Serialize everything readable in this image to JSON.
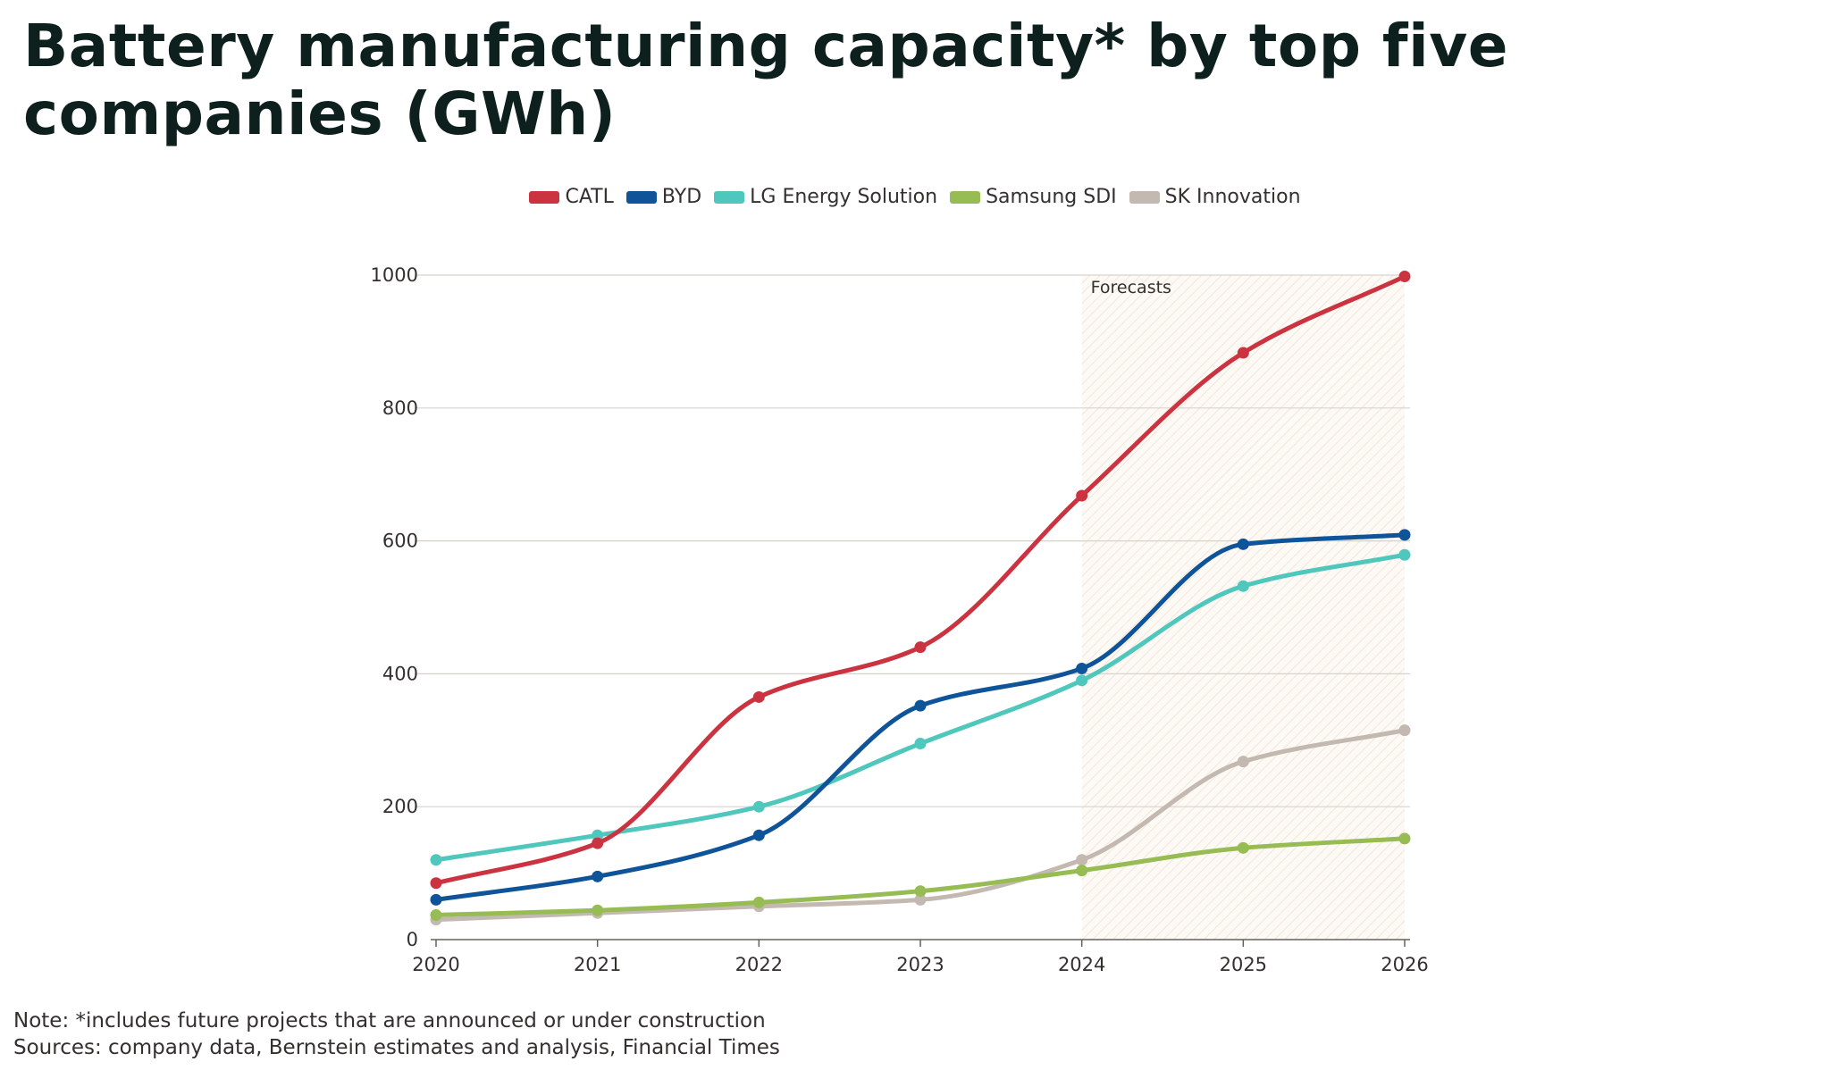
{
  "title": "Battery manufacturing capacity* by top five companies (GWh)",
  "note": "Note: *includes future projects that are announced or under construction",
  "sources": "Sources: company data, Bernstein estimates and analysis, Financial Times",
  "chart_data": {
    "type": "line",
    "title": "Battery manufacturing capacity* by top five companies (GWh)",
    "x": [
      2020,
      2021,
      2022,
      2023,
      2024,
      2025,
      2026
    ],
    "x_tick_labels": [
      "2020",
      "2021",
      "2022",
      "2023",
      "2024",
      "2025",
      "2026"
    ],
    "ylim": [
      0,
      1000
    ],
    "y_ticks": [
      0,
      200,
      400,
      600,
      800,
      1000
    ],
    "y_tick_labels": [
      "0",
      "200",
      "400",
      "600",
      "800",
      "1000"
    ],
    "grid": true,
    "legend_position": "top-center",
    "annotation": {
      "text": "Forecasts",
      "x_start": 2024,
      "x_end": 2026
    },
    "series": [
      {
        "name": "CATL",
        "color": "#cc3340",
        "values": [
          85,
          145,
          365,
          440,
          668,
          883,
          998
        ]
      },
      {
        "name": "BYD",
        "color": "#0f5499",
        "values": [
          60,
          95,
          157,
          352,
          408,
          595,
          609
        ]
      },
      {
        "name": "LG Energy Solution",
        "color": "#4fc7bc",
        "values": [
          120,
          157,
          200,
          295,
          390,
          532,
          579
        ]
      },
      {
        "name": "Samsung SDI",
        "color": "#96bc53",
        "values": [
          37,
          44,
          56,
          73,
          104,
          138,
          152
        ]
      },
      {
        "name": "SK Innovation",
        "color": "#c4b9b0",
        "values": [
          30,
          40,
          50,
          60,
          120,
          268,
          315
        ]
      }
    ]
  }
}
